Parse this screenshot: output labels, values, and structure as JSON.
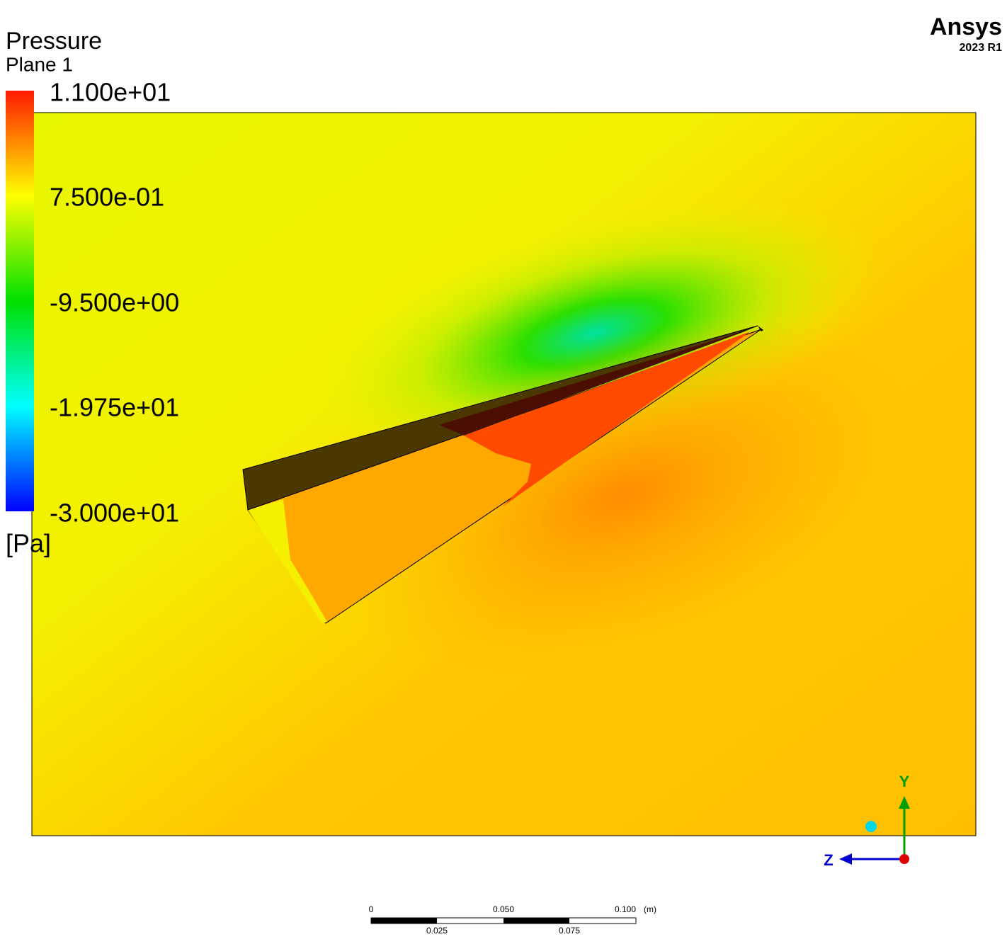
{
  "legend": {
    "title": "Pressure",
    "subtitle": "Plane 1",
    "labels": [
      "1.100e+01",
      "7.500e-01",
      "-9.500e+00",
      "-1.975e+01",
      "-3.000e+01"
    ],
    "unit": "[Pa]"
  },
  "logo": {
    "name": "Ansys",
    "version": "2023 R1"
  },
  "scale_bar": {
    "top_labels": [
      "0",
      "0.050",
      "0.100"
    ],
    "unit": "(m)",
    "bottom_labels": [
      "0.025",
      "0.075"
    ]
  },
  "triad": {
    "y_label": "Y",
    "z_label": "Z"
  }
}
